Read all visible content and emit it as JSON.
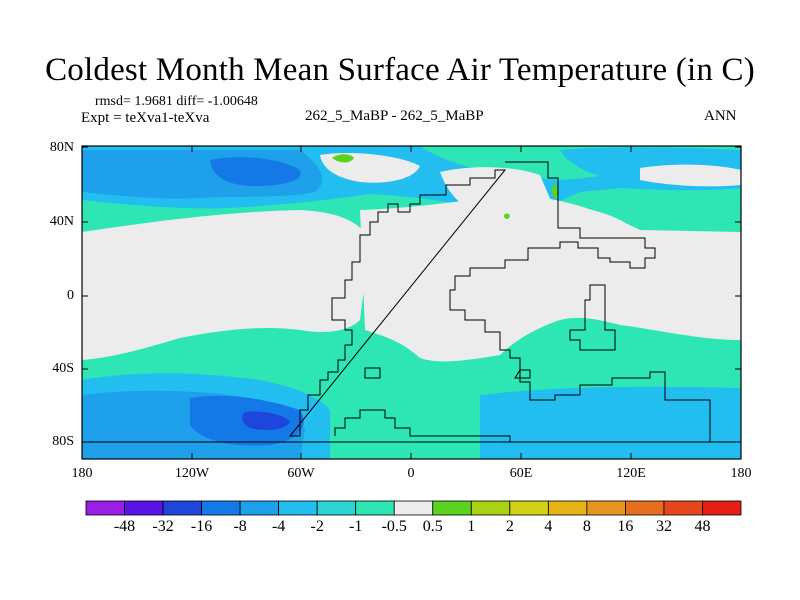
{
  "title": "Coldest Month Mean Surface Air Temperature (in C)",
  "rmsd_text": "rmsd= 1.9681 diff= -1.00648",
  "expt_text": "Expt = teXva1-teXva",
  "case_text": "262_5_MaBP - 262_5_MaBP",
  "season_text": "ANN",
  "lat_ticks": [
    "80N",
    "40N",
    "0",
    "40S",
    "80S"
  ],
  "lon_ticks": [
    "180",
    "120W",
    "60W",
    "0",
    "60E",
    "120E",
    "180"
  ],
  "colorbar": {
    "labels": [
      "-48",
      "-32",
      "-16",
      "-8",
      "-4",
      "-2",
      "-1",
      "-0.5",
      "0.5",
      "1",
      "2",
      "4",
      "8",
      "16",
      "32",
      "48"
    ],
    "colors": [
      "#9a1ee6",
      "#5a14e6",
      "#1e46dc",
      "#1478e6",
      "#1ea0eb",
      "#23bef0",
      "#2dd2d2",
      "#2de6b4",
      "#ececec",
      "#5ad21e",
      "#aad214",
      "#d2d214",
      "#e6b414",
      "#e6961e",
      "#e66e1e",
      "#e6461e",
      "#e61e14"
    ]
  },
  "map_colors": {
    "neutral": "#ececec",
    "cyan": "#2de6b4",
    "light_blue": "#23bef0",
    "mid_blue": "#1ea0eb",
    "blue": "#1478e6",
    "deep_blue": "#1e46dc",
    "green": "#5ad21e",
    "coast": "#000000"
  }
}
